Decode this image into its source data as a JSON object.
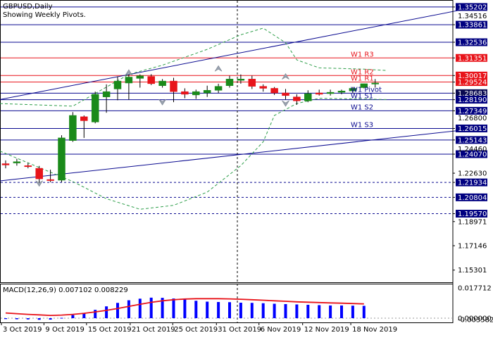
{
  "header": {
    "symbol_line": "GBPUSD,Daily",
    "subtitle_line": "Showing Weekly Pivots."
  },
  "colors": {
    "up_candle": "#1a8a1a",
    "down_candle": "#e8141a",
    "wick": "#000000",
    "pivot_line_red": "#e8141a",
    "pivot_line_blue": "#0a0a90",
    "trend_line": "#0a0a90",
    "envelope": "#2e9e4a",
    "macd_hist": "#0000ff",
    "macd_signal": "#e8141a",
    "price_tag_blue_bg": "#000080",
    "price_tag_red_bg": "#e8141a",
    "current_price_bg": "#0a0a50"
  },
  "chart_data": [
    {
      "type": "candlestick",
      "title": "GBPUSD,Daily",
      "subtitle": "Showing Weekly Pivots.",
      "ylim": [
        1.1438,
        1.3573
      ],
      "y_ticks": [
        1.35202,
        1.33861,
        1.32536,
        1.3135,
        1.30017,
        1.29524,
        1.28683,
        1.2819,
        1.27349,
        1.26015,
        1.25143,
        1.2407,
        1.2263,
        1.21934,
        1.20804,
        1.1957,
        1.18971,
        1.17146,
        1.15301
      ],
      "y_tick_labels": [
        "1.35202",
        "1.33861",
        "1.32536",
        "1.31351",
        "1.30017",
        "1.29524",
        "1.28683",
        "1.28190",
        "1.27349",
        "1.26015",
        "1.25143",
        "1.24070",
        "1.22630",
        "1.21934",
        "1.20804",
        "1.19570",
        "1.18971",
        "1.17146",
        "1.15301"
      ],
      "extra_axis_labels": [
        "1.34516",
        "1.26800",
        "1.24460"
      ],
      "x_labels": [
        "3 Oct 2019",
        "9 Oct 2019",
        "15 Oct 2019",
        "21 Oct 2019",
        "25 Oct 2019",
        "31 Oct 2019",
        "6 Nov 2019",
        "12 Nov 2019",
        "18 Nov 2019"
      ],
      "candles": [
        {
          "open": 1.2335,
          "high": 1.236,
          "low": 1.23,
          "close": 1.2325
        },
        {
          "open": 1.234,
          "high": 1.2372,
          "low": 1.232,
          "close": 1.235
        },
        {
          "open": 1.232,
          "high": 1.234,
          "low": 1.23,
          "close": 1.2313
        },
        {
          "open": 1.23,
          "high": 1.2318,
          "low": 1.219,
          "close": 1.222
        },
        {
          "open": 1.2215,
          "high": 1.229,
          "low": 1.2195,
          "close": 1.221
        },
        {
          "open": 1.221,
          "high": 1.255,
          "low": 1.2195,
          "close": 1.253
        },
        {
          "open": 1.251,
          "high": 1.2725,
          "low": 1.25,
          "close": 1.27
        },
        {
          "open": 1.269,
          "high": 1.27,
          "low": 1.253,
          "close": 1.266
        },
        {
          "open": 1.265,
          "high": 1.288,
          "low": 1.264,
          "close": 1.286
        },
        {
          "open": 1.284,
          "high": 1.2935,
          "low": 1.272,
          "close": 1.288
        },
        {
          "open": 1.29,
          "high": 1.2995,
          "low": 1.2815,
          "close": 1.296
        },
        {
          "open": 1.2945,
          "high": 1.301,
          "low": 1.282,
          "close": 1.299
        },
        {
          "open": 1.298,
          "high": 1.301,
          "low": 1.291,
          "close": 1.3
        },
        {
          "open": 1.2995,
          "high": 1.3012,
          "low": 1.293,
          "close": 1.294
        },
        {
          "open": 1.2925,
          "high": 1.2975,
          "low": 1.291,
          "close": 1.296
        },
        {
          "open": 1.296,
          "high": 1.2985,
          "low": 1.28,
          "close": 1.288
        },
        {
          "open": 1.288,
          "high": 1.2905,
          "low": 1.283,
          "close": 1.286
        },
        {
          "open": 1.2855,
          "high": 1.2895,
          "low": 1.2825,
          "close": 1.288
        },
        {
          "open": 1.287,
          "high": 1.2925,
          "low": 1.284,
          "close": 1.289
        },
        {
          "open": 1.289,
          "high": 1.294,
          "low": 1.287,
          "close": 1.292
        },
        {
          "open": 1.2925,
          "high": 1.3,
          "low": 1.291,
          "close": 1.2975
        },
        {
          "open": 1.2965,
          "high": 1.301,
          "low": 1.294,
          "close": 1.2975
        },
        {
          "open": 1.2975,
          "high": 1.3,
          "low": 1.29,
          "close": 1.292
        },
        {
          "open": 1.292,
          "high": 1.2935,
          "low": 1.288,
          "close": 1.2905
        },
        {
          "open": 1.2905,
          "high": 1.2915,
          "low": 1.2855,
          "close": 1.287
        },
        {
          "open": 1.287,
          "high": 1.29,
          "low": 1.282,
          "close": 1.285
        },
        {
          "open": 1.284,
          "high": 1.286,
          "low": 1.278,
          "close": 1.281
        },
        {
          "open": 1.281,
          "high": 1.289,
          "low": 1.28,
          "close": 1.2865
        },
        {
          "open": 1.287,
          "high": 1.2895,
          "low": 1.285,
          "close": 1.286
        },
        {
          "open": 1.2865,
          "high": 1.2895,
          "low": 1.285,
          "close": 1.2875
        },
        {
          "open": 1.2875,
          "high": 1.2895,
          "low": 1.286,
          "close": 1.2885
        },
        {
          "open": 1.2885,
          "high": 1.2915,
          "low": 1.287,
          "close": 1.2905
        },
        {
          "open": 1.291,
          "high": 1.294,
          "low": 1.2905,
          "close": 1.294
        },
        {
          "open": 1.2945,
          "high": 1.2975,
          "low": 1.291,
          "close": 1.2945
        }
      ],
      "pivot_levels": [
        {
          "name": "W1 R3",
          "value": 1.3135,
          "color": "red"
        },
        {
          "name": "W1 R2",
          "value": 1.30017,
          "color": "red"
        },
        {
          "name": "W1 R1",
          "value": 1.29524,
          "color": "red"
        },
        {
          "name": "W1 Pivot",
          "value": 1.28683,
          "color": "blue"
        },
        {
          "name": "W1 S1",
          "value": 1.2819,
          "color": "blue"
        },
        {
          "name": "W1 S2",
          "value": 1.27349,
          "color": "blue"
        },
        {
          "name": "W1 S3",
          "value": 1.26015,
          "color": "blue"
        }
      ],
      "extra_solid_lines": [
        1.35202,
        1.33861,
        1.32536,
        1.25143,
        1.2407
      ],
      "dashed_lines": [
        1.21934,
        1.20804,
        1.1957
      ],
      "trend_lines": [
        {
          "from_index": -0.5,
          "from_value": 1.282,
          "to_index": 42,
          "to_value": 1.352
        },
        {
          "from_index": -0.5,
          "from_value": 1.2205,
          "to_index": 42,
          "to_value": 1.26
        }
      ],
      "envelope_upper": [
        [
          -0.5,
          1.279
        ],
        [
          6,
          1.277
        ],
        [
          11,
          1.301
        ],
        [
          14,
          1.308
        ],
        [
          18,
          1.32
        ],
        [
          21,
          1.331
        ],
        [
          23,
          1.336
        ],
        [
          25,
          1.325
        ],
        [
          26,
          1.312
        ],
        [
          28,
          1.306
        ],
        [
          32,
          1.305
        ],
        [
          34,
          1.304
        ]
      ],
      "envelope_lower": [
        [
          -0.5,
          1.243
        ],
        [
          6,
          1.22
        ],
        [
          9,
          1.207
        ],
        [
          12,
          1.199
        ],
        [
          15,
          1.202
        ],
        [
          18,
          1.212
        ],
        [
          21,
          1.232
        ],
        [
          23,
          1.25
        ],
        [
          24,
          1.27
        ],
        [
          26,
          1.279
        ],
        [
          28,
          1.283
        ],
        [
          34,
          1.282
        ]
      ],
      "fractal_markers": [
        {
          "index": 11,
          "value": 1.3025,
          "dir": "up"
        },
        {
          "index": 19,
          "value": 1.3055,
          "dir": "up"
        },
        {
          "index": 25,
          "value": 1.2995,
          "dir": "up"
        },
        {
          "index": 14,
          "value": 1.28,
          "dir": "down"
        },
        {
          "index": 25,
          "value": 1.279,
          "dir": "down"
        },
        {
          "index": 3,
          "value": 1.2185,
          "dir": "down"
        }
      ],
      "current_price": 1.28683,
      "current_date_index": 20
    },
    {
      "type": "bar",
      "title": "MACD(12,26,9) 0.007102 0.008229",
      "series": [
        {
          "name": "MACD",
          "values": [
            -0.0005,
            -0.0006,
            -0.0007,
            -0.0009,
            -0.0008,
            0.0002,
            0.0018,
            0.003,
            0.0048,
            0.0068,
            0.0088,
            0.0103,
            0.0112,
            0.0118,
            0.0117,
            0.0113,
            0.0108,
            0.01,
            0.0095,
            0.0093,
            0.0092,
            0.0089,
            0.0088,
            0.0086,
            0.0083,
            0.0081,
            0.0079,
            0.0077,
            0.0075,
            0.0073,
            0.0073,
            0.0072,
            0.0071
          ]
        },
        {
          "name": "Signal",
          "values": [
            0.003,
            0.0026,
            0.0022,
            0.0019,
            0.0016,
            0.0018,
            0.0022,
            0.0028,
            0.0036,
            0.0045,
            0.0056,
            0.0068,
            0.008,
            0.0091,
            0.01,
            0.0106,
            0.011,
            0.0112,
            0.0112,
            0.0112,
            0.0111,
            0.0109,
            0.0106,
            0.0103,
            0.01,
            0.0097,
            0.0094,
            0.0092,
            0.009,
            0.0088,
            0.0086,
            0.0084,
            0.0082
          ]
        }
      ],
      "ylim": [
        -0.0008,
        0.0182
      ],
      "y_tick_labels": [
        "0.017712",
        "0.000000",
        "-0.003582"
      ]
    }
  ]
}
